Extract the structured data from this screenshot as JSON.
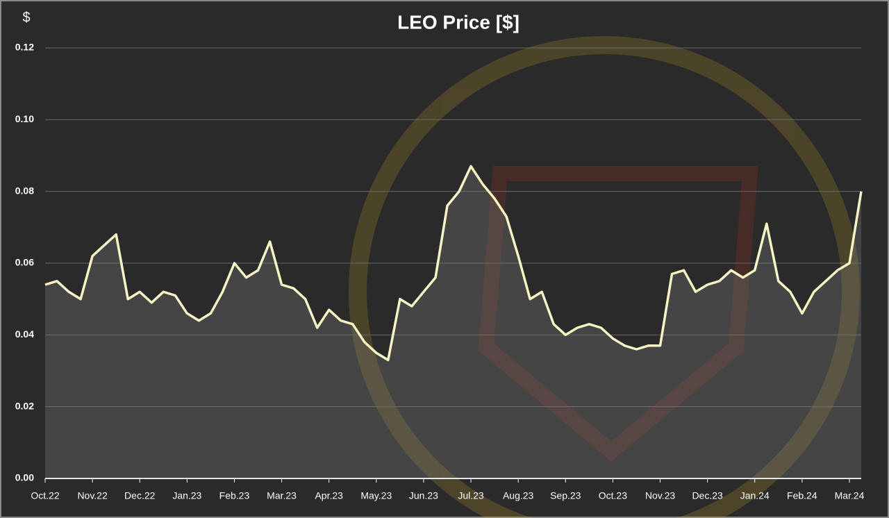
{
  "chart_data": {
    "type": "line",
    "title": "LEO Price [$]",
    "y_label": "$",
    "categories": [
      "Oct.22",
      null,
      null,
      null,
      "Nov.22",
      null,
      null,
      null,
      "Dec.22",
      null,
      null,
      null,
      "Jan.23",
      null,
      null,
      null,
      "Feb.23",
      null,
      null,
      null,
      "Mar.23",
      null,
      null,
      null,
      "Apr.23",
      null,
      null,
      null,
      "May.23",
      null,
      null,
      null,
      "Jun.23",
      null,
      null,
      null,
      "Jul.23",
      null,
      null,
      null,
      "Aug.23",
      null,
      null,
      null,
      "Sep.23",
      null,
      null,
      null,
      "Oct.23",
      null,
      null,
      null,
      "Nov.23",
      null,
      null,
      null,
      "Dec.23",
      null,
      null,
      null,
      "Jan.24",
      null,
      null,
      null,
      "Feb.24",
      null,
      null,
      null,
      "Mar.24",
      null
    ],
    "series": [
      {
        "name": "LEO Price",
        "color": "#f8f4c4",
        "values": [
          0.054,
          0.055,
          0.052,
          0.05,
          0.062,
          0.065,
          0.068,
          0.05,
          0.052,
          0.049,
          0.052,
          0.051,
          0.046,
          0.044,
          0.046,
          0.052,
          0.06,
          0.056,
          0.058,
          0.066,
          0.054,
          0.053,
          0.05,
          0.042,
          0.047,
          0.044,
          0.043,
          0.038,
          0.035,
          0.033,
          0.05,
          0.048,
          0.052,
          0.056,
          0.076,
          0.08,
          0.087,
          0.082,
          0.078,
          0.073,
          0.062,
          0.05,
          0.052,
          0.043,
          0.04,
          0.042,
          0.043,
          0.042,
          0.039,
          0.037,
          0.036,
          0.037,
          0.037,
          0.057,
          0.058,
          0.052,
          0.054,
          0.055,
          0.058,
          0.056,
          0.058,
          0.071,
          0.055,
          0.052,
          0.046,
          0.052,
          0.055,
          0.058,
          0.06,
          0.08
        ]
      }
    ],
    "ylim": [
      0,
      0.12
    ],
    "yticks": [
      {
        "value": 0,
        "label": "0.00"
      },
      0.02,
      0.04,
      0.06,
      0.08,
      {
        "value": 0.1,
        "label": "0.10"
      },
      0.12
    ],
    "grid": true
  }
}
